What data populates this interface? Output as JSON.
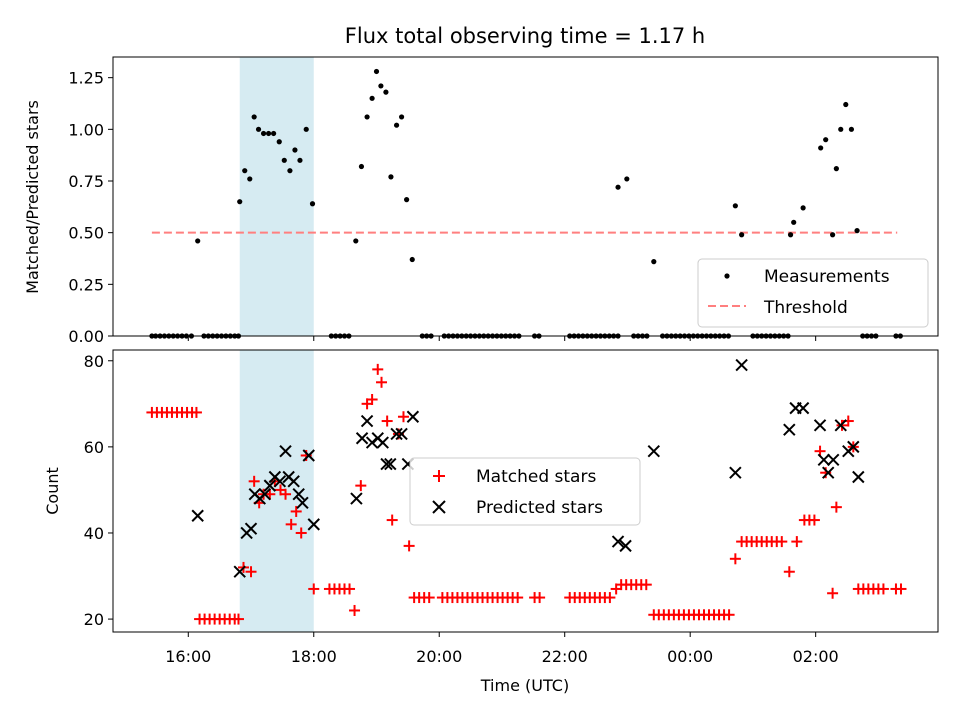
{
  "chart_data": {
    "colors": {
      "measurement": "#000000",
      "threshold": "#ff7f7f",
      "matched": "#ff0000",
      "predicted": "#000000",
      "span": "#add8e6"
    },
    "highlight_span_hours": [
      16.82,
      18.0
    ],
    "xlabel": "Time (UTC)",
    "x_range_hours": [
      14.8,
      27.95
    ],
    "x_ticks": [
      {
        "h": 16,
        "label": "16:00"
      },
      {
        "h": 18,
        "label": "18:00"
      },
      {
        "h": 20,
        "label": "20:00"
      },
      {
        "h": 22,
        "label": "22:00"
      },
      {
        "h": 24,
        "label": "00:00"
      },
      {
        "h": 26,
        "label": "02:00"
      }
    ],
    "top": {
      "type": "scatter",
      "title": "Flux total observing time = 1.17 h",
      "ylabel": "Matched/Predicted stars",
      "ylim": [
        0,
        1.35
      ],
      "yticks": [
        0.0,
        0.25,
        0.5,
        0.75,
        1.0,
        1.25
      ],
      "ytick_labels": [
        "0.00",
        "0.25",
        "0.50",
        "0.75",
        "1.00",
        "1.25"
      ],
      "legend": {
        "position": "lower-right",
        "entries": [
          "Measurements",
          "Threshold"
        ]
      },
      "threshold": {
        "y": 0.5,
        "x_range": [
          15.42,
          27.3
        ]
      },
      "measurements": [
        [
          15.42,
          0
        ],
        [
          15.48,
          0
        ],
        [
          15.55,
          0
        ],
        [
          15.62,
          0
        ],
        [
          15.69,
          0
        ],
        [
          15.76,
          0
        ],
        [
          15.83,
          0
        ],
        [
          15.9,
          0
        ],
        [
          15.97,
          0
        ],
        [
          16.05,
          0
        ],
        [
          16.15,
          0.46
        ],
        [
          16.25,
          0
        ],
        [
          16.32,
          0
        ],
        [
          16.39,
          0
        ],
        [
          16.46,
          0
        ],
        [
          16.53,
          0
        ],
        [
          16.6,
          0
        ],
        [
          16.67,
          0
        ],
        [
          16.74,
          0
        ],
        [
          16.8,
          0
        ],
        [
          16.82,
          0.65
        ],
        [
          16.9,
          0.8
        ],
        [
          16.98,
          0.76
        ],
        [
          17.05,
          1.06
        ],
        [
          17.12,
          1.0
        ],
        [
          17.2,
          0.98
        ],
        [
          17.28,
          0.98
        ],
        [
          17.36,
          0.98
        ],
        [
          17.45,
          0.94
        ],
        [
          17.53,
          0.85
        ],
        [
          17.62,
          0.8
        ],
        [
          17.7,
          0.9
        ],
        [
          17.78,
          0.85
        ],
        [
          17.88,
          1.0
        ],
        [
          17.98,
          0.64
        ],
        [
          18.28,
          0
        ],
        [
          18.35,
          0
        ],
        [
          18.42,
          0
        ],
        [
          18.49,
          0
        ],
        [
          18.56,
          0
        ],
        [
          18.67,
          0.46
        ],
        [
          18.76,
          0.82
        ],
        [
          18.85,
          1.06
        ],
        [
          18.93,
          1.15
        ],
        [
          19.0,
          1.28
        ],
        [
          19.07,
          1.21
        ],
        [
          19.15,
          1.18
        ],
        [
          19.23,
          0.77
        ],
        [
          19.32,
          1.02
        ],
        [
          19.4,
          1.06
        ],
        [
          19.48,
          0.66
        ],
        [
          19.57,
          0.37
        ],
        [
          19.73,
          0
        ],
        [
          19.8,
          0
        ],
        [
          19.87,
          0
        ],
        [
          20.08,
          0
        ],
        [
          20.15,
          0
        ],
        [
          20.22,
          0
        ],
        [
          20.29,
          0
        ],
        [
          20.36,
          0
        ],
        [
          20.43,
          0
        ],
        [
          20.5,
          0
        ],
        [
          20.57,
          0
        ],
        [
          20.64,
          0
        ],
        [
          20.71,
          0
        ],
        [
          20.78,
          0
        ],
        [
          20.85,
          0
        ],
        [
          20.92,
          0
        ],
        [
          20.99,
          0
        ],
        [
          21.06,
          0
        ],
        [
          21.13,
          0
        ],
        [
          21.2,
          0
        ],
        [
          21.27,
          0
        ],
        [
          21.52,
          0
        ],
        [
          21.59,
          0
        ],
        [
          22.08,
          0
        ],
        [
          22.15,
          0
        ],
        [
          22.22,
          0
        ],
        [
          22.29,
          0
        ],
        [
          22.36,
          0
        ],
        [
          22.43,
          0
        ],
        [
          22.5,
          0
        ],
        [
          22.57,
          0
        ],
        [
          22.64,
          0
        ],
        [
          22.71,
          0
        ],
        [
          22.78,
          0
        ],
        [
          22.85,
          0
        ],
        [
          22.85,
          0.72
        ],
        [
          22.99,
          0.76
        ],
        [
          23.1,
          0
        ],
        [
          23.17,
          0
        ],
        [
          23.24,
          0
        ],
        [
          23.31,
          0
        ],
        [
          23.42,
          0.36
        ],
        [
          23.56,
          0
        ],
        [
          23.63,
          0
        ],
        [
          23.7,
          0
        ],
        [
          23.77,
          0
        ],
        [
          23.84,
          0
        ],
        [
          23.91,
          0
        ],
        [
          23.98,
          0
        ],
        [
          24.05,
          0
        ],
        [
          24.12,
          0
        ],
        [
          24.19,
          0
        ],
        [
          24.26,
          0
        ],
        [
          24.33,
          0
        ],
        [
          24.4,
          0
        ],
        [
          24.47,
          0
        ],
        [
          24.54,
          0
        ],
        [
          24.61,
          0
        ],
        [
          24.72,
          0.63
        ],
        [
          24.82,
          0.49
        ],
        [
          25.0,
          0
        ],
        [
          25.07,
          0
        ],
        [
          25.14,
          0
        ],
        [
          25.21,
          0
        ],
        [
          25.28,
          0
        ],
        [
          25.35,
          0
        ],
        [
          25.42,
          0
        ],
        [
          25.49,
          0
        ],
        [
          25.56,
          0
        ],
        [
          25.6,
          0.49
        ],
        [
          25.65,
          0.55
        ],
        [
          25.8,
          0.62
        ],
        [
          26.08,
          0.91
        ],
        [
          26.16,
          0.95
        ],
        [
          26.27,
          0.49
        ],
        [
          26.33,
          0.81
        ],
        [
          26.4,
          1.0
        ],
        [
          26.48,
          1.12
        ],
        [
          26.57,
          1.0
        ],
        [
          26.66,
          0.51
        ],
        [
          26.75,
          0
        ],
        [
          26.82,
          0
        ],
        [
          26.89,
          0
        ],
        [
          26.96,
          0
        ],
        [
          27.28,
          0
        ],
        [
          27.35,
          0
        ]
      ]
    },
    "bottom": {
      "type": "scatter",
      "ylabel": "Count",
      "ylim": [
        17,
        82.5
      ],
      "yticks": [
        20,
        40,
        60,
        80
      ],
      "ytick_labels": [
        "20",
        "40",
        "60",
        "80"
      ],
      "legend": {
        "position": "center",
        "entries": [
          "Matched stars",
          "Predicted stars"
        ]
      },
      "matched": [
        [
          15.42,
          68
        ],
        [
          15.5,
          68
        ],
        [
          15.58,
          68
        ],
        [
          15.66,
          68
        ],
        [
          15.74,
          68
        ],
        [
          15.82,
          68
        ],
        [
          15.9,
          68
        ],
        [
          15.98,
          68
        ],
        [
          16.06,
          68
        ],
        [
          16.13,
          68
        ],
        [
          16.18,
          20
        ],
        [
          16.26,
          20
        ],
        [
          16.34,
          20
        ],
        [
          16.42,
          20
        ],
        [
          16.5,
          20
        ],
        [
          16.58,
          20
        ],
        [
          16.66,
          20
        ],
        [
          16.74,
          20
        ],
        [
          16.8,
          20
        ],
        [
          16.88,
          32
        ],
        [
          17.0,
          31
        ],
        [
          17.05,
          52
        ],
        [
          17.13,
          47
        ],
        [
          17.2,
          49
        ],
        [
          17.3,
          49
        ],
        [
          17.38,
          52
        ],
        [
          17.47,
          50
        ],
        [
          17.55,
          49
        ],
        [
          17.64,
          42
        ],
        [
          17.72,
          45
        ],
        [
          17.8,
          40
        ],
        [
          17.88,
          58
        ],
        [
          18.0,
          27
        ],
        [
          18.25,
          27
        ],
        [
          18.33,
          27
        ],
        [
          18.41,
          27
        ],
        [
          18.49,
          27
        ],
        [
          18.57,
          27
        ],
        [
          18.65,
          22
        ],
        [
          18.75,
          51
        ],
        [
          18.85,
          70
        ],
        [
          18.93,
          71
        ],
        [
          19.02,
          78
        ],
        [
          19.08,
          75
        ],
        [
          19.17,
          66
        ],
        [
          19.25,
          43
        ],
        [
          19.35,
          63
        ],
        [
          19.43,
          67
        ],
        [
          19.52,
          37
        ],
        [
          19.6,
          25
        ],
        [
          19.68,
          25
        ],
        [
          19.76,
          25
        ],
        [
          19.84,
          25
        ],
        [
          20.05,
          25
        ],
        [
          20.13,
          25
        ],
        [
          20.21,
          25
        ],
        [
          20.29,
          25
        ],
        [
          20.37,
          25
        ],
        [
          20.45,
          25
        ],
        [
          20.53,
          25
        ],
        [
          20.61,
          25
        ],
        [
          20.69,
          25
        ],
        [
          20.77,
          25
        ],
        [
          20.85,
          25
        ],
        [
          20.93,
          25
        ],
        [
          21.01,
          25
        ],
        [
          21.09,
          25
        ],
        [
          21.17,
          25
        ],
        [
          21.25,
          25
        ],
        [
          21.52,
          25
        ],
        [
          21.6,
          25
        ],
        [
          22.08,
          25
        ],
        [
          22.16,
          25
        ],
        [
          22.24,
          25
        ],
        [
          22.32,
          25
        ],
        [
          22.4,
          25
        ],
        [
          22.48,
          25
        ],
        [
          22.56,
          25
        ],
        [
          22.64,
          25
        ],
        [
          22.72,
          25
        ],
        [
          22.82,
          27
        ],
        [
          22.9,
          28
        ],
        [
          22.98,
          28
        ],
        [
          23.06,
          28
        ],
        [
          23.14,
          28
        ],
        [
          23.22,
          28
        ],
        [
          23.3,
          28
        ],
        [
          23.42,
          21
        ],
        [
          23.5,
          21
        ],
        [
          23.58,
          21
        ],
        [
          23.66,
          21
        ],
        [
          23.74,
          21
        ],
        [
          23.82,
          21
        ],
        [
          23.9,
          21
        ],
        [
          23.98,
          21
        ],
        [
          24.06,
          21
        ],
        [
          24.14,
          21
        ],
        [
          24.22,
          21
        ],
        [
          24.3,
          21
        ],
        [
          24.38,
          21
        ],
        [
          24.46,
          21
        ],
        [
          24.54,
          21
        ],
        [
          24.62,
          21
        ],
        [
          24.72,
          34
        ],
        [
          24.82,
          38
        ],
        [
          24.9,
          38
        ],
        [
          24.98,
          38
        ],
        [
          25.06,
          38
        ],
        [
          25.14,
          38
        ],
        [
          25.22,
          38
        ],
        [
          25.3,
          38
        ],
        [
          25.38,
          38
        ],
        [
          25.46,
          38
        ],
        [
          25.58,
          31
        ],
        [
          25.7,
          38
        ],
        [
          25.82,
          43
        ],
        [
          25.9,
          43
        ],
        [
          25.98,
          43
        ],
        [
          26.07,
          59
        ],
        [
          26.16,
          54
        ],
        [
          26.27,
          26
        ],
        [
          26.33,
          46
        ],
        [
          26.42,
          65
        ],
        [
          26.52,
          66
        ],
        [
          26.6,
          60
        ],
        [
          26.68,
          27
        ],
        [
          26.76,
          27
        ],
        [
          26.84,
          27
        ],
        [
          26.92,
          27
        ],
        [
          27.0,
          27
        ],
        [
          27.08,
          27
        ],
        [
          27.28,
          27
        ],
        [
          27.36,
          27
        ]
      ],
      "predicted": [
        [
          16.15,
          44
        ],
        [
          16.82,
          31
        ],
        [
          16.93,
          40
        ],
        [
          17.0,
          41
        ],
        [
          17.06,
          49
        ],
        [
          17.14,
          48
        ],
        [
          17.22,
          49
        ],
        [
          17.3,
          51
        ],
        [
          17.38,
          53
        ],
        [
          17.46,
          52
        ],
        [
          17.55,
          59
        ],
        [
          17.6,
          53
        ],
        [
          17.68,
          52
        ],
        [
          17.76,
          49
        ],
        [
          17.82,
          47
        ],
        [
          17.92,
          58
        ],
        [
          18.0,
          42
        ],
        [
          18.68,
          48
        ],
        [
          18.77,
          62
        ],
        [
          18.85,
          66
        ],
        [
          18.93,
          61
        ],
        [
          19.02,
          62
        ],
        [
          19.1,
          61
        ],
        [
          19.16,
          56
        ],
        [
          19.22,
          56
        ],
        [
          19.32,
          63
        ],
        [
          19.4,
          63
        ],
        [
          19.5,
          56
        ],
        [
          19.58,
          67
        ],
        [
          22.85,
          38
        ],
        [
          22.97,
          37
        ],
        [
          23.42,
          59
        ],
        [
          24.72,
          54
        ],
        [
          24.82,
          79
        ],
        [
          25.58,
          64
        ],
        [
          25.68,
          69
        ],
        [
          25.8,
          69
        ],
        [
          26.07,
          65
        ],
        [
          26.13,
          57
        ],
        [
          26.2,
          54
        ],
        [
          26.28,
          57
        ],
        [
          26.4,
          65
        ],
        [
          26.52,
          59
        ],
        [
          26.6,
          60
        ],
        [
          26.68,
          53
        ]
      ]
    }
  }
}
